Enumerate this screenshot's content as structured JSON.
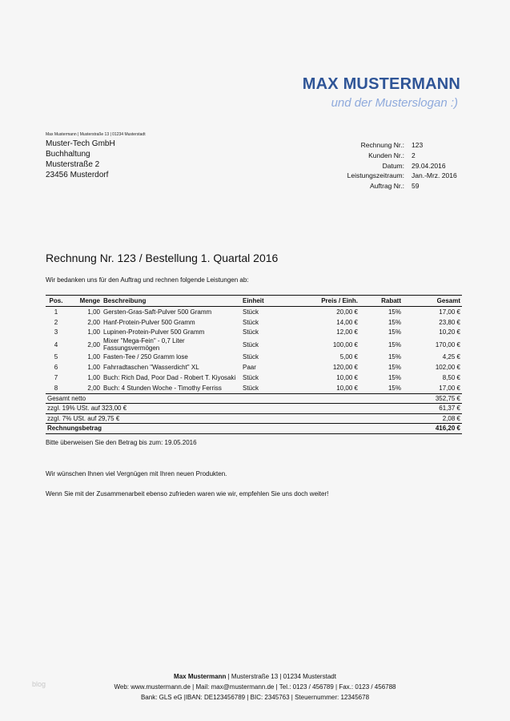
{
  "brand": {
    "name": "MAX MUSTERMANN",
    "slogan": "und der Musterslogan :)",
    "color": "#2f5597",
    "slogan_color": "#8faadc"
  },
  "sender_line": "Max Mustermann | Musterstraße 13 | 01234 Musterstadt",
  "recipient": [
    "Muster-Tech GmbH",
    "Buchhaltung",
    "Musterstraße 2",
    "23456 Musterdorf"
  ],
  "info": [
    {
      "label": "Rechnung Nr.:",
      "value": "123"
    },
    {
      "label": "Kunden Nr.:",
      "value": "2"
    },
    {
      "label": "Datum:",
      "value": "29.04.2016"
    },
    {
      "label": "Leistungszeitraum:",
      "value": "Jan.-Mrz. 2016"
    },
    {
      "label": "Auftrag Nr.:",
      "value": "59"
    }
  ],
  "heading": "Rechnung Nr. 123 / Bestellung 1. Quartal 2016",
  "intro": "Wir bedanken uns für den Auftrag und rechnen folgende Leistungen ab:",
  "table": {
    "headers": [
      "Pos.",
      "Menge",
      "Beschreibung",
      "Einheit",
      "Preis / Einh.",
      "Rabatt",
      "Gesamt"
    ],
    "rows": [
      [
        "1",
        "1,00",
        "Gersten-Gras-Saft-Pulver 500 Gramm",
        "Stück",
        "20,00 €",
        "15%",
        "17,00 €"
      ],
      [
        "2",
        "2,00",
        "Hanf-Protein-Pulver 500 Gramm",
        "Stück",
        "14,00 €",
        "15%",
        "23,80 €"
      ],
      [
        "3",
        "1,00",
        "Lupinen-Protein-Pulver 500 Gramm",
        "Stück",
        "12,00 €",
        "15%",
        "10,20 €"
      ],
      [
        "4",
        "2,00",
        "Mixer \"Mega-Fein\" - 0,7 Liter Fassungsvermögen",
        "Stück",
        "100,00 €",
        "15%",
        "170,00 €"
      ],
      [
        "5",
        "1,00",
        "Fasten-Tee / 250 Gramm lose",
        "Stück",
        "5,00 €",
        "15%",
        "4,25 €"
      ],
      [
        "6",
        "1,00",
        "Fahrradtaschen \"Wasserdicht\" XL",
        "Paar",
        "120,00 €",
        "15%",
        "102,00 €"
      ],
      [
        "7",
        "1,00",
        "Buch: Rich Dad, Poor Dad - Robert T. Kiyosaki",
        "Stück",
        "10,00 €",
        "15%",
        "8,50 €"
      ],
      [
        "8",
        "2,00",
        "Buch: 4 Stunden Woche - Timothy Ferriss",
        "Stück",
        "10,00 €",
        "15%",
        "17,00 €"
      ]
    ],
    "summary": [
      {
        "label": "Gesamt netto",
        "value": "352,75 €"
      },
      {
        "label": "zzgl. 19% USt. auf 323,00 €",
        "value": "61,37 €"
      },
      {
        "label": "zzgl. 7% USt. auf 29,75 €",
        "value": "2,08 €"
      },
      {
        "label": "Rechnungsbetrag",
        "value": "416,20 €"
      }
    ]
  },
  "payment_note": "Bitte überweisen Sie den Betrag bis zum: 19.05.2016",
  "closing": [
    "Wir wünschen Ihnen viel Vergnügen mit Ihren neuen Produkten.",
    "Wenn Sie mit der Zusammenarbeit ebenso zufrieden waren wie wir, empfehlen Sie uns doch weiter!"
  ],
  "footer": {
    "name": "Max Mustermann",
    "line1_rest": " | Musterstraße 13 | 01234 Musterstadt",
    "line2": "Web: www.mustermann.de | Mail: max@mustermann.de | Tel.: 0123 / 456789 | Fax.: 0123 / 456788",
    "line3": "Bank: GLS eG |IBAN: DE123456789 | BIC: 2345763 | Steuernummer: 12345678"
  },
  "watermark": "blog"
}
